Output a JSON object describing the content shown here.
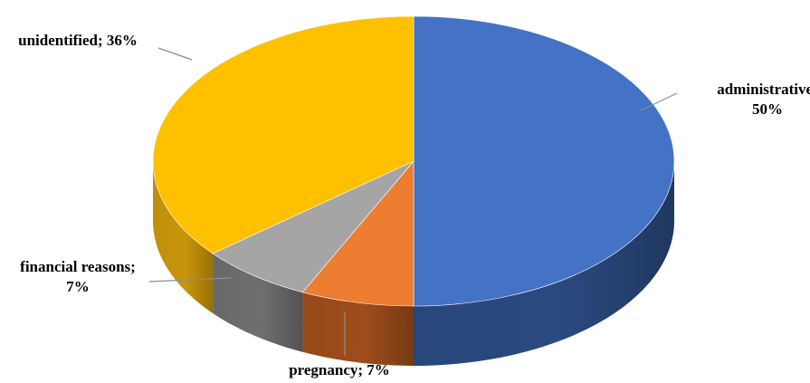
{
  "chart_data": {
    "type": "pie",
    "style": "3d",
    "title": "",
    "legend": "none",
    "slices": [
      {
        "name": "administrative",
        "value": 50,
        "label_lines": [
          "administrative;",
          "50%"
        ],
        "color": "#4472C4",
        "side_color": "#2A4A80"
      },
      {
        "name": "pregnancy",
        "value": 7,
        "label_lines": [
          "pregnancy; 7%"
        ],
        "color": "#ED7D31",
        "side_color": "#9E4D1B"
      },
      {
        "name": "financial reasons",
        "value": 7,
        "label_lines": [
          "financial reasons;",
          "7%"
        ],
        "color": "#A5A5A5",
        "side_color": "#6E6E6E"
      },
      {
        "name": "unidentified",
        "value": 36,
        "label_lines": [
          "unidentified; 36%"
        ],
        "color": "#FFC000",
        "side_color": "#C9960A"
      }
    ]
  }
}
